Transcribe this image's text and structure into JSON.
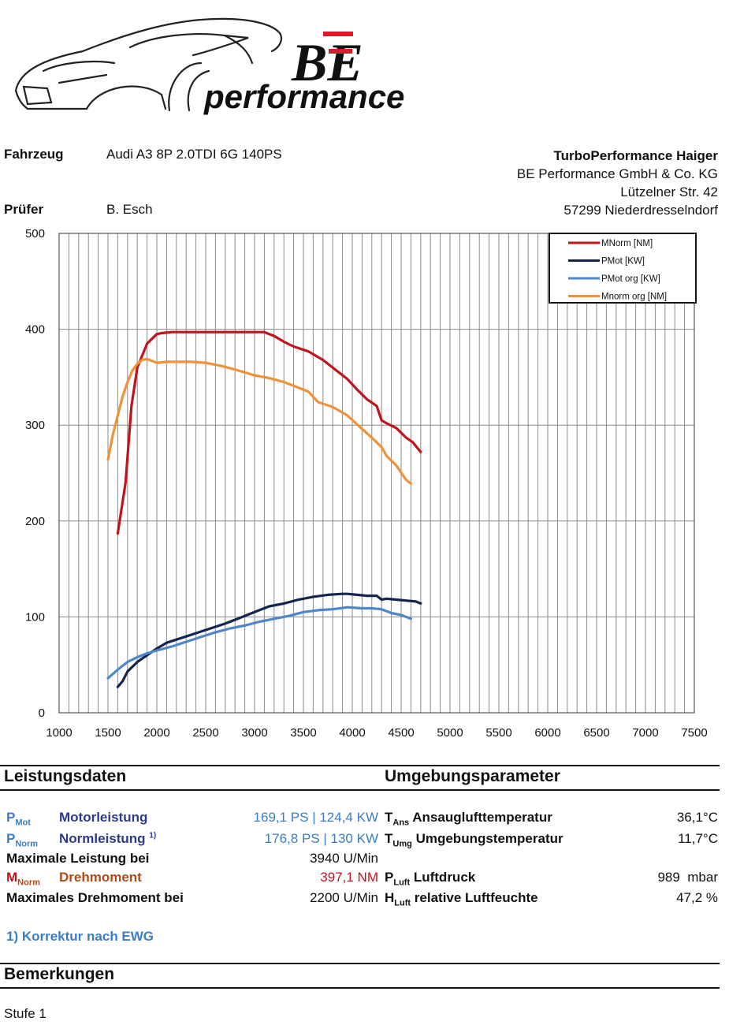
{
  "header": {
    "vehicle_label": "Fahrzeug",
    "vehicle_value": "Audi A3 8P 2.0TDI 6G 140PS",
    "tester_label": "Prüfer",
    "tester_value": "B. Esch",
    "company_name": "TurboPerformance Haiger",
    "company_legal": "BE Performance GmbH & Co. KG",
    "street": "Lützelner Str. 42",
    "city": "57299 Niederdresselndorf",
    "logo_text": "performance",
    "logo_mark": "BE"
  },
  "chart_data": {
    "type": "line",
    "xlim": [
      1000,
      7500
    ],
    "ylim": [
      0,
      500
    ],
    "xticks": [
      1000,
      1500,
      2000,
      2500,
      3000,
      3500,
      4000,
      4500,
      5000,
      5500,
      6000,
      6500,
      7000,
      7500
    ],
    "yticks": [
      0,
      100,
      200,
      300,
      400,
      500
    ],
    "xlabel": "",
    "ylabel": "",
    "grid": true,
    "legend_position": "top-right",
    "series": [
      {
        "name": "MNorm [NM]",
        "color": "#c0141b",
        "x": [
          1600,
          1680,
          1740,
          1800,
          1900,
          2000,
          2050,
          2150,
          2300,
          2500,
          2750,
          3000,
          3100,
          3200,
          3300,
          3400,
          3550,
          3700,
          3800,
          3950,
          4050,
          4150,
          4250,
          4300,
          4350,
          4450,
          4550,
          4620,
          4700
        ],
        "y": [
          187,
          240,
          320,
          360,
          385,
          395,
          396,
          397,
          397,
          397,
          397,
          397,
          397,
          393,
          387,
          382,
          377,
          368,
          360,
          348,
          337,
          327,
          320,
          305,
          302,
          297,
          287,
          282,
          272
        ]
      },
      {
        "name": "PMot [KW]",
        "color": "#14264f",
        "x": [
          1600,
          1650,
          1700,
          1800,
          1900,
          2000,
          2100,
          2250,
          2400,
          2550,
          2700,
          2850,
          3000,
          3150,
          3300,
          3450,
          3600,
          3750,
          3900,
          3950,
          4050,
          4150,
          4250,
          4300,
          4350,
          4450,
          4550,
          4650,
          4700
        ],
        "y": [
          27,
          33,
          43,
          53,
          60,
          67,
          73,
          78,
          83,
          88,
          93,
          99,
          105,
          111,
          114,
          118,
          121,
          123,
          124,
          124,
          123,
          122,
          122,
          118,
          119,
          118,
          117,
          116,
          114
        ]
      },
      {
        "name": "PMot org [KW]",
        "color": "#4f86c9",
        "x": [
          1500,
          1600,
          1700,
          1800,
          1900,
          2000,
          2150,
          2300,
          2450,
          2600,
          2750,
          2900,
          3050,
          3200,
          3350,
          3500,
          3650,
          3800,
          3950,
          4100,
          4200,
          4300,
          4350,
          4400,
          4500,
          4600
        ],
        "y": [
          36,
          45,
          53,
          58,
          62,
          65,
          69,
          74,
          79,
          84,
          88,
          91,
          95,
          98,
          101,
          105,
          107,
          108,
          110,
          109,
          109,
          108,
          106,
          104,
          102,
          98
        ]
      },
      {
        "name": "Mnorm org [NM]",
        "color": "#f0923a",
        "x": [
          1500,
          1550,
          1600,
          1650,
          1700,
          1750,
          1800,
          1850,
          1900,
          1950,
          2000,
          2100,
          2200,
          2350,
          2500,
          2650,
          2800,
          3000,
          3150,
          3300,
          3450,
          3550,
          3650,
          3800,
          3950,
          4100,
          4200,
          4300,
          4350,
          4450,
          4550,
          4600
        ],
        "y": [
          264,
          290,
          310,
          330,
          345,
          357,
          364,
          368,
          369,
          367,
          365,
          366,
          366,
          366,
          365,
          362,
          358,
          352,
          349,
          345,
          339,
          335,
          324,
          319,
          310,
          296,
          287,
          277,
          268,
          258,
          243,
          239
        ]
      }
    ]
  },
  "performance": {
    "section_title": "Leistungsdaten",
    "rows": [
      {
        "sym": "P",
        "sub": "Mot",
        "label": "Motorleistung",
        "sup": "",
        "value": "169,1 PS | 124,4 KW"
      },
      {
        "sym": "P",
        "sub": "Norm",
        "label": "Normleistung",
        "sup": "1)",
        "value": "176,8 PS | 130 KW"
      },
      {
        "label": "Maximale Leistung bei",
        "value": "3940 U/Min"
      },
      {
        "sym": "M",
        "sub": "Norm",
        "label": "Drehmoment",
        "value": "397,1 NM"
      },
      {
        "label": "Maximales Drehmoment bei",
        "value": "2200 U/Min"
      }
    ],
    "footnote": "1) Korrektur nach EWG"
  },
  "environment": {
    "section_title": "Umgebungsparameter",
    "rows": [
      {
        "sym": "T",
        "sub": "Ans",
        "label": "Ansauglufttemperatur",
        "value": "36,1°C"
      },
      {
        "sym": "T",
        "sub": "Umg",
        "label": "Umgebungstemperatur",
        "value": "11,7°C"
      },
      {
        "sym": "P",
        "sub": "Luft",
        "label": "Luftdruck",
        "value": "989  mbar"
      },
      {
        "sym": "H",
        "sub": "Luft",
        "label": "relative Luftfeuchte",
        "value": "47,2 %"
      }
    ]
  },
  "remarks": {
    "section_title": "Bemerkungen",
    "text": "Stufe 1"
  }
}
